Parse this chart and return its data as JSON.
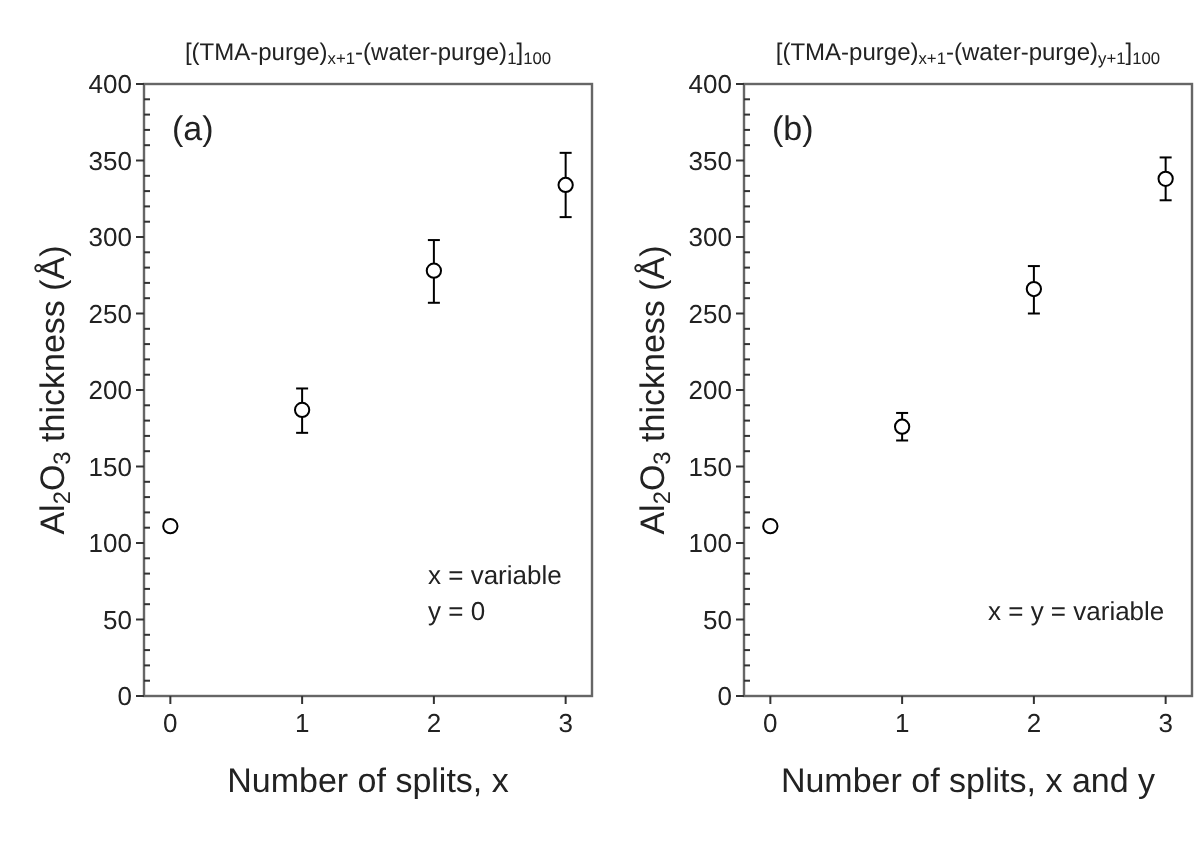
{
  "chart_data": [
    {
      "type": "scatter",
      "title": "[(TMA-purge)$_{x+1}$-(water-purge)$_{1}$]$_{100}$",
      "xlabel": "Number of splits, x",
      "ylabel": "Al$_{2}$O$_{3}$ thickness (Å)",
      "x": [
        0,
        1,
        2,
        3
      ],
      "values": [
        111,
        187,
        278,
        334
      ],
      "errors": [
        null,
        [
          172,
          201
        ],
        [
          257,
          298
        ],
        [
          313,
          355
        ]
      ],
      "color": "#000000",
      "marker": "circle",
      "xlim": [
        -0.2,
        3.2
      ],
      "ylim": [
        0,
        400
      ],
      "xticks": [
        0,
        1,
        2,
        3
      ],
      "yticks": [
        0,
        {
          "value": 10,
          "label": null
        },
        {
          "value": 20,
          "label": null
        },
        {
          "value": 30,
          "label": null
        },
        {
          "value": 40,
          "label": null
        },
        50,
        {
          "value": 60,
          "label": null
        },
        {
          "value": 70,
          "label": null
        },
        {
          "value": 80,
          "label": null
        },
        {
          "value": 90,
          "label": null
        },
        100,
        {
          "value": 110,
          "label": null
        },
        {
          "value": 120,
          "label": null
        },
        {
          "value": 130,
          "label": null
        },
        {
          "value": 140,
          "label": null
        },
        150,
        {
          "value": 160,
          "label": null
        },
        {
          "value": 170,
          "label": null
        },
        {
          "value": 180,
          "label": null
        },
        {
          "value": 190,
          "label": null
        },
        200,
        {
          "value": 210,
          "label": null
        },
        {
          "value": 220,
          "label": null
        },
        {
          "value": 230,
          "label": null
        },
        {
          "value": 240,
          "label": null
        },
        250,
        {
          "value": 260,
          "label": null
        },
        {
          "value": 270,
          "label": null
        },
        {
          "value": 280,
          "label": null
        },
        {
          "value": 290,
          "label": null
        },
        300,
        {
          "value": 310,
          "label": null
        },
        {
          "value": 320,
          "label": null
        },
        {
          "value": 330,
          "label": null
        },
        {
          "value": 340,
          "label": null
        },
        350,
        {
          "value": 360,
          "label": null
        },
        {
          "value": 370,
          "label": null
        },
        {
          "value": 380,
          "label": null
        },
        {
          "value": 390,
          "label": null
        },
        400
      ],
      "annotations": [
        "(a)",
        "x = variable",
        "y = 0"
      ]
    },
    {
      "type": "scatter",
      "title": "[(TMA-purge)$_{x+1}$-(water-purge)$_{y+1}$]$_{100}$",
      "xlabel": "Number of splits, x and y",
      "ylabel": "Al$_{2}$O$_{3}$ thickness (Å)",
      "x": [
        0,
        1,
        2,
        3
      ],
      "values": [
        111,
        176,
        266,
        338
      ],
      "errors": [
        null,
        [
          167,
          185
        ],
        [
          250,
          281
        ],
        [
          324,
          352
        ]
      ],
      "color": "#000000",
      "marker": "circle",
      "xlim": [
        -0.2,
        3.2
      ],
      "ylim": [
        0,
        400
      ],
      "xticks": [
        0,
        1,
        2,
        3
      ],
      "yticks": [
        0,
        {
          "value": 10,
          "label": null
        },
        {
          "value": 20,
          "label": null
        },
        {
          "value": 30,
          "label": null
        },
        {
          "value": 40,
          "label": null
        },
        50,
        {
          "value": 60,
          "label": null
        },
        {
          "value": 70,
          "label": null
        },
        {
          "value": 80,
          "label": null
        },
        {
          "value": 90,
          "label": null
        },
        100,
        {
          "value": 110,
          "label": null
        },
        {
          "value": 120,
          "label": null
        },
        {
          "value": 130,
          "label": null
        },
        {
          "value": 140,
          "label": null
        },
        150,
        {
          "value": 160,
          "label": null
        },
        {
          "value": 170,
          "label": null
        },
        {
          "value": 180,
          "label": null
        },
        {
          "value": 190,
          "label": null
        },
        200,
        {
          "value": 210,
          "label": null
        },
        {
          "value": 220,
          "label": null
        },
        {
          "value": 230,
          "label": null
        },
        {
          "value": 240,
          "label": null
        },
        250,
        {
          "value": 260,
          "label": null
        },
        {
          "value": 270,
          "label": null
        },
        {
          "value": 280,
          "label": null
        },
        {
          "value": 290,
          "label": null
        },
        300,
        {
          "value": 310,
          "label": null
        },
        {
          "value": 320,
          "label": null
        },
        {
          "value": 330,
          "label": null
        },
        {
          "value": 340,
          "label": null
        },
        350,
        {
          "value": 360,
          "label": null
        },
        {
          "value": 370,
          "label": null
        },
        {
          "value": 380,
          "label": null
        },
        {
          "value": 390,
          "label": null
        },
        400
      ],
      "annotations": [
        "(b)",
        "x = y = variable"
      ]
    }
  ]
}
